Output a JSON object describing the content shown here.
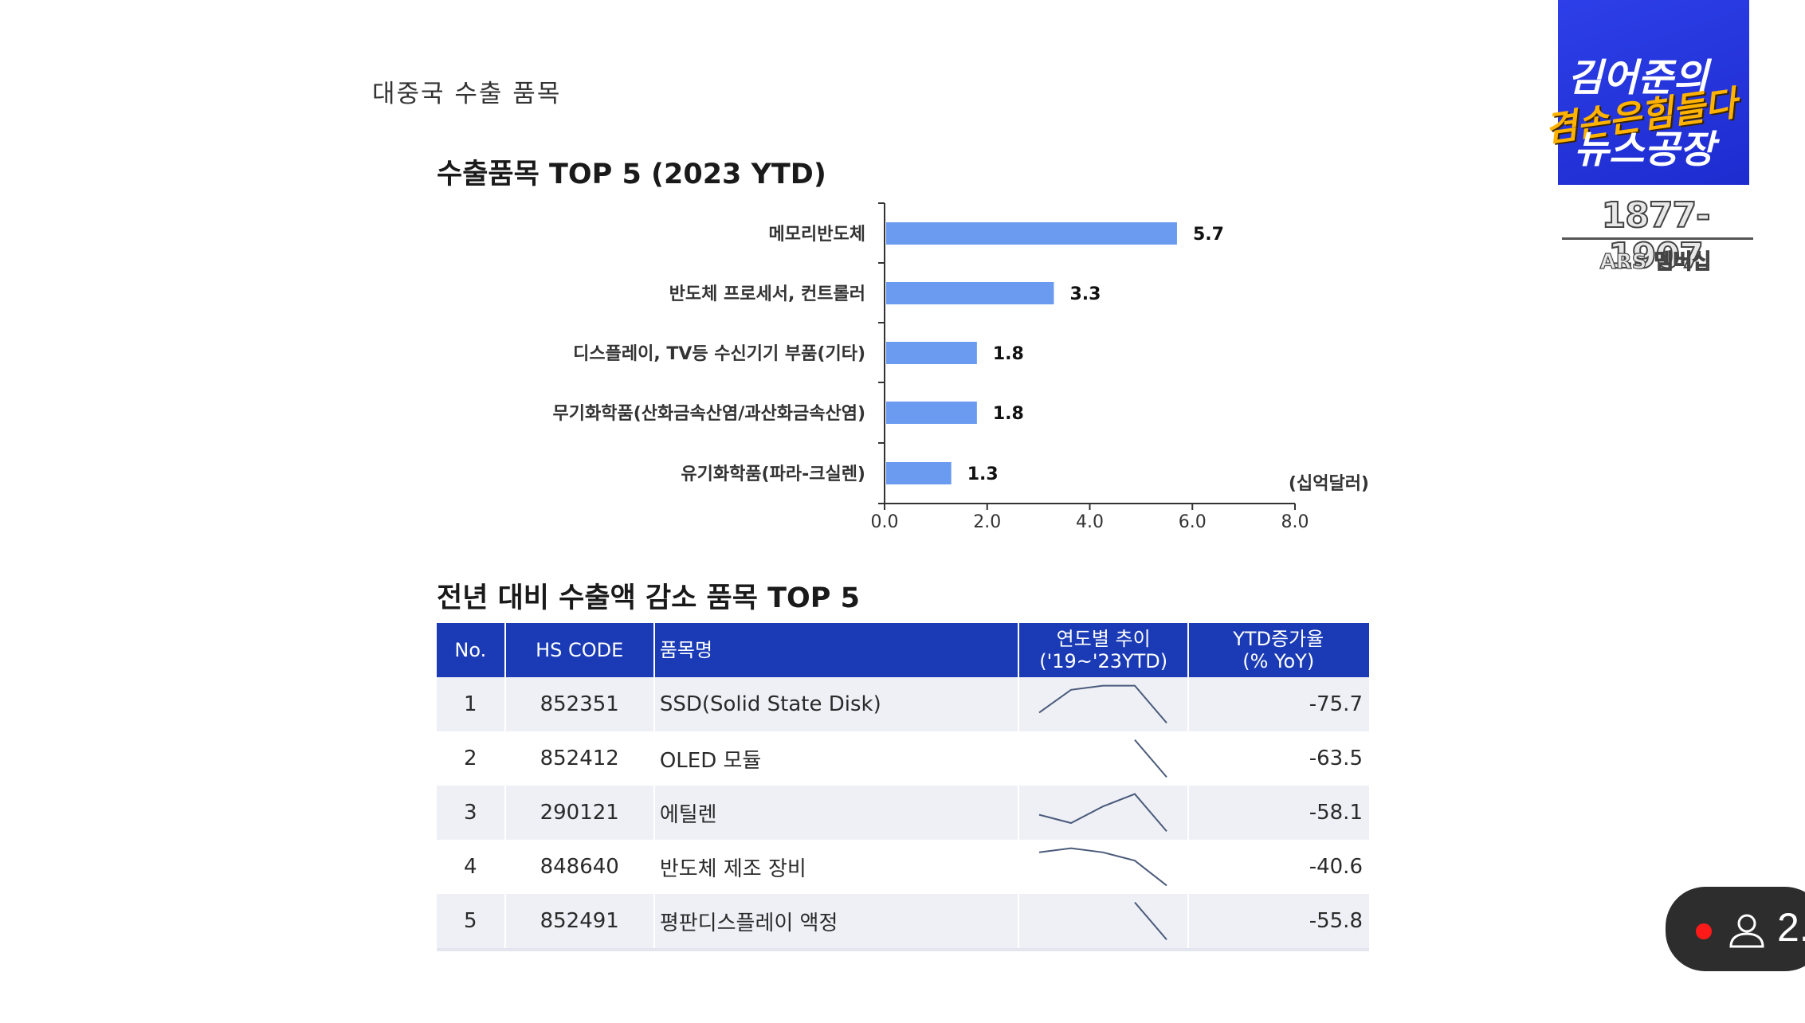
{
  "caption": "대중국 수출 품목",
  "chart_data": {
    "type": "bar",
    "orientation": "horizontal",
    "title": "수출품목 TOP 5 (2023 YTD)",
    "unit_label": "(십억달러)",
    "categories": [
      "메모리반도체",
      "반도체 프로세서, 컨트롤러",
      "디스플레이, TV등 수신기기 부품(기타)",
      "무기화학품(산화금속산염/과산화금속산염)",
      "유기화학품(파라-크실렌)"
    ],
    "values": [
      5.7,
      3.3,
      1.8,
      1.8,
      1.3
    ],
    "value_labels": [
      "5.7",
      "3.3",
      "1.8",
      "1.8",
      "1.3"
    ],
    "xlim": [
      0,
      8
    ],
    "xticks": [
      "0.0",
      "2.0",
      "4.0",
      "6.0",
      "8.0"
    ],
    "bar_color": "#6a9bf0",
    "grid": false
  },
  "table": {
    "title": "전년 대비 수출액 감소 품목 TOP 5",
    "headers": {
      "no": "No.",
      "hs": "HS CODE",
      "name": "품목명",
      "trend_1": "연도별 추이",
      "trend_2": "('19~'23YTD)",
      "ytd_1": "YTD증가율",
      "ytd_2": "(% YoY)"
    },
    "rows": [
      {
        "no": "1",
        "hs": "852351",
        "name": "SSD(Solid State Disk)",
        "ytd": "-75.7",
        "trend": [
          0.3,
          0.85,
          0.95,
          0.95,
          0.05
        ]
      },
      {
        "no": "2",
        "hs": "852412",
        "name": "OLED 모듈",
        "ytd": "-63.5",
        "trend": [
          null,
          null,
          null,
          0.95,
          0.05
        ]
      },
      {
        "no": "3",
        "hs": "290121",
        "name": "에틸렌",
        "ytd": "-58.1",
        "trend": [
          0.45,
          0.25,
          0.65,
          0.95,
          0.05
        ]
      },
      {
        "no": "4",
        "hs": "848640",
        "name": "반도체 제조 장비",
        "ytd": "-40.6",
        "trend": [
          0.85,
          0.95,
          0.85,
          0.65,
          0.05
        ]
      },
      {
        "no": "5",
        "hs": "852491",
        "name": "평판디스플레이 액정",
        "ytd": "-55.8",
        "trend": [
          null,
          null,
          null,
          0.95,
          0.05
        ]
      }
    ]
  },
  "ad": {
    "line1": "김어준의",
    "line2": "겸손은힘들다",
    "line3": "뉴스공장",
    "phone": "1877-1907",
    "ars": "ARS 멤버십"
  },
  "live": {
    "viewer_count": "2."
  },
  "colors": {
    "header_blue": "#1a3bb5",
    "bar_blue": "#6a9bf0",
    "ad_blue": "#2235e0",
    "ad_yellow": "#ffb300",
    "live_red": "#ff1a1a"
  }
}
